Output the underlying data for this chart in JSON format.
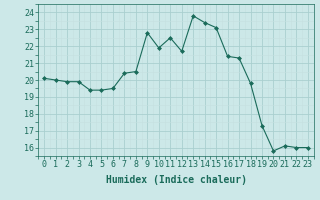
{
  "x": [
    0,
    1,
    2,
    3,
    4,
    5,
    6,
    7,
    8,
    9,
    10,
    11,
    12,
    13,
    14,
    15,
    16,
    17,
    18,
    19,
    20,
    21,
    22,
    23
  ],
  "y": [
    20.1,
    20.0,
    19.9,
    19.9,
    19.4,
    19.4,
    19.5,
    20.4,
    20.5,
    22.8,
    21.9,
    22.5,
    21.7,
    23.8,
    23.4,
    23.1,
    21.4,
    21.3,
    19.8,
    17.3,
    15.8,
    16.1,
    16.0,
    16.0
  ],
  "line_color": "#1a6b5a",
  "marker": "D",
  "marker_size": 2.0,
  "bg_color": "#cce8e8",
  "grid_color_minor": "#c5e0e0",
  "grid_color_major": "#aacfcf",
  "xlabel": "Humidex (Indice chaleur)",
  "ylim": [
    15.5,
    24.5
  ],
  "xlim": [
    -0.5,
    23.5
  ],
  "yticks": [
    16,
    17,
    18,
    19,
    20,
    21,
    22,
    23,
    24
  ],
  "xticks": [
    0,
    1,
    2,
    3,
    4,
    5,
    6,
    7,
    8,
    9,
    10,
    11,
    12,
    13,
    14,
    15,
    16,
    17,
    18,
    19,
    20,
    21,
    22,
    23
  ],
  "tick_color": "#1a6b5a",
  "label_color": "#1a6b5a",
  "xlabel_fontsize": 7,
  "tick_fontsize": 6
}
